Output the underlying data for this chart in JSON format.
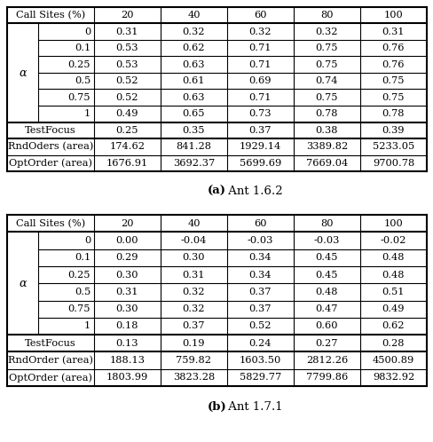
{
  "table_a": {
    "caption_bold": "(a)",
    "caption_rest": " Ant 1.6.2",
    "header": [
      "Call Sites (%)",
      "20",
      "40",
      "60",
      "80",
      "100"
    ],
    "alpha_rows": [
      [
        "0",
        "0.31",
        "0.32",
        "0.32",
        "0.32",
        "0.31"
      ],
      [
        "0.1",
        "0.53",
        "0.62",
        "0.71",
        "0.75",
        "0.76"
      ],
      [
        "0.25",
        "0.53",
        "0.63",
        "0.71",
        "0.75",
        "0.76"
      ],
      [
        "0.5",
        "0.52",
        "0.61",
        "0.69",
        "0.74",
        "0.75"
      ],
      [
        "0.75",
        "0.52",
        "0.63",
        "0.71",
        "0.75",
        "0.75"
      ],
      [
        "1",
        "0.49",
        "0.65",
        "0.73",
        "0.78",
        "0.78"
      ]
    ],
    "alpha_label": "α",
    "testfocus_row": [
      "TestFocus",
      "0.25",
      "0.35",
      "0.37",
      "0.38",
      "0.39"
    ],
    "rnd_row": [
      "RndOders (area)",
      "174.62",
      "841.28",
      "1929.14",
      "3389.82",
      "5233.05"
    ],
    "opt_row": [
      "OptOrder (area)",
      "1676.91",
      "3692.37",
      "5699.69",
      "7669.04",
      "9700.78"
    ]
  },
  "table_b": {
    "caption_bold": "(b)",
    "caption_rest": " Ant 1.7.1",
    "header": [
      "Call Sites (%)",
      "20",
      "40",
      "60",
      "80",
      "100"
    ],
    "alpha_rows": [
      [
        "0",
        "0.00",
        "-0.04",
        "-0.03",
        "-0.03",
        "-0.02"
      ],
      [
        "0.1",
        "0.29",
        "0.30",
        "0.34",
        "0.45",
        "0.48"
      ],
      [
        "0.25",
        "0.30",
        "0.31",
        "0.34",
        "0.45",
        "0.48"
      ],
      [
        "0.5",
        "0.31",
        "0.32",
        "0.37",
        "0.48",
        "0.51"
      ],
      [
        "0.75",
        "0.30",
        "0.32",
        "0.37",
        "0.47",
        "0.49"
      ],
      [
        "1",
        "0.18",
        "0.37",
        "0.52",
        "0.60",
        "0.62"
      ]
    ],
    "alpha_label": "α",
    "testfocus_row": [
      "TestFocus",
      "0.13",
      "0.19",
      "0.24",
      "0.27",
      "0.28"
    ],
    "rnd_row": [
      "RndOrder (area)",
      "188.13",
      "759.82",
      "1603.50",
      "2812.26",
      "4500.89"
    ],
    "opt_row": [
      "OptOrder (area)",
      "1803.99",
      "3823.28",
      "5829.77",
      "7799.86",
      "9832.92"
    ]
  },
  "bg_color": "white",
  "font_size": 8.2,
  "caption_font_size": 9.5
}
